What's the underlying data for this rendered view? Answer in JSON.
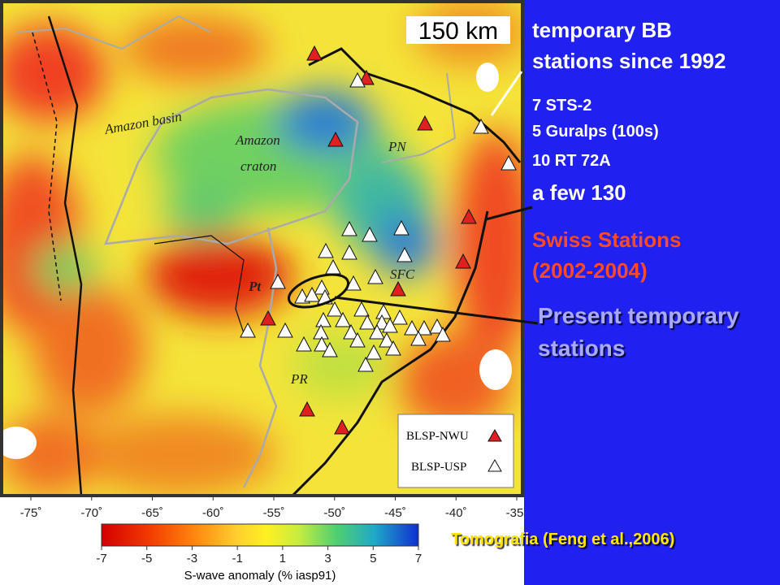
{
  "map": {
    "scale_label": "150 km",
    "region_labels": {
      "amazon_basin": "Amazon basin",
      "amazon_craton": [
        "Amazon",
        "craton"
      ],
      "pn": "PN",
      "sfc": "SFC",
      "pt": "Pt",
      "pr": "PR"
    },
    "longitude_ticks": [
      "-75˚",
      "-70˚",
      "-65˚",
      "-60˚",
      "-55˚",
      "-50˚",
      "-45˚",
      "-40˚",
      "-35˚"
    ],
    "legend": [
      "BLSP-NWU",
      "BLSP-USP"
    ]
  },
  "colorbar": {
    "ticks": [
      -7,
      -5,
      -3,
      -1,
      1,
      3,
      5,
      7
    ],
    "label": "S-wave anomaly (% iasp91)"
  },
  "side_text": {
    "title": [
      "temporary BB",
      "stations since 1992"
    ],
    "counts": [
      "7 STS-2",
      "5 Guralps (100s)",
      "10 RT 72A",
      "a few 130"
    ],
    "swiss": [
      "Swiss Stations",
      "(2002-2004)"
    ],
    "present": [
      "Present  temporary",
      "stations"
    ]
  },
  "citation": "Tomografia (Feng et al.,2006)"
}
